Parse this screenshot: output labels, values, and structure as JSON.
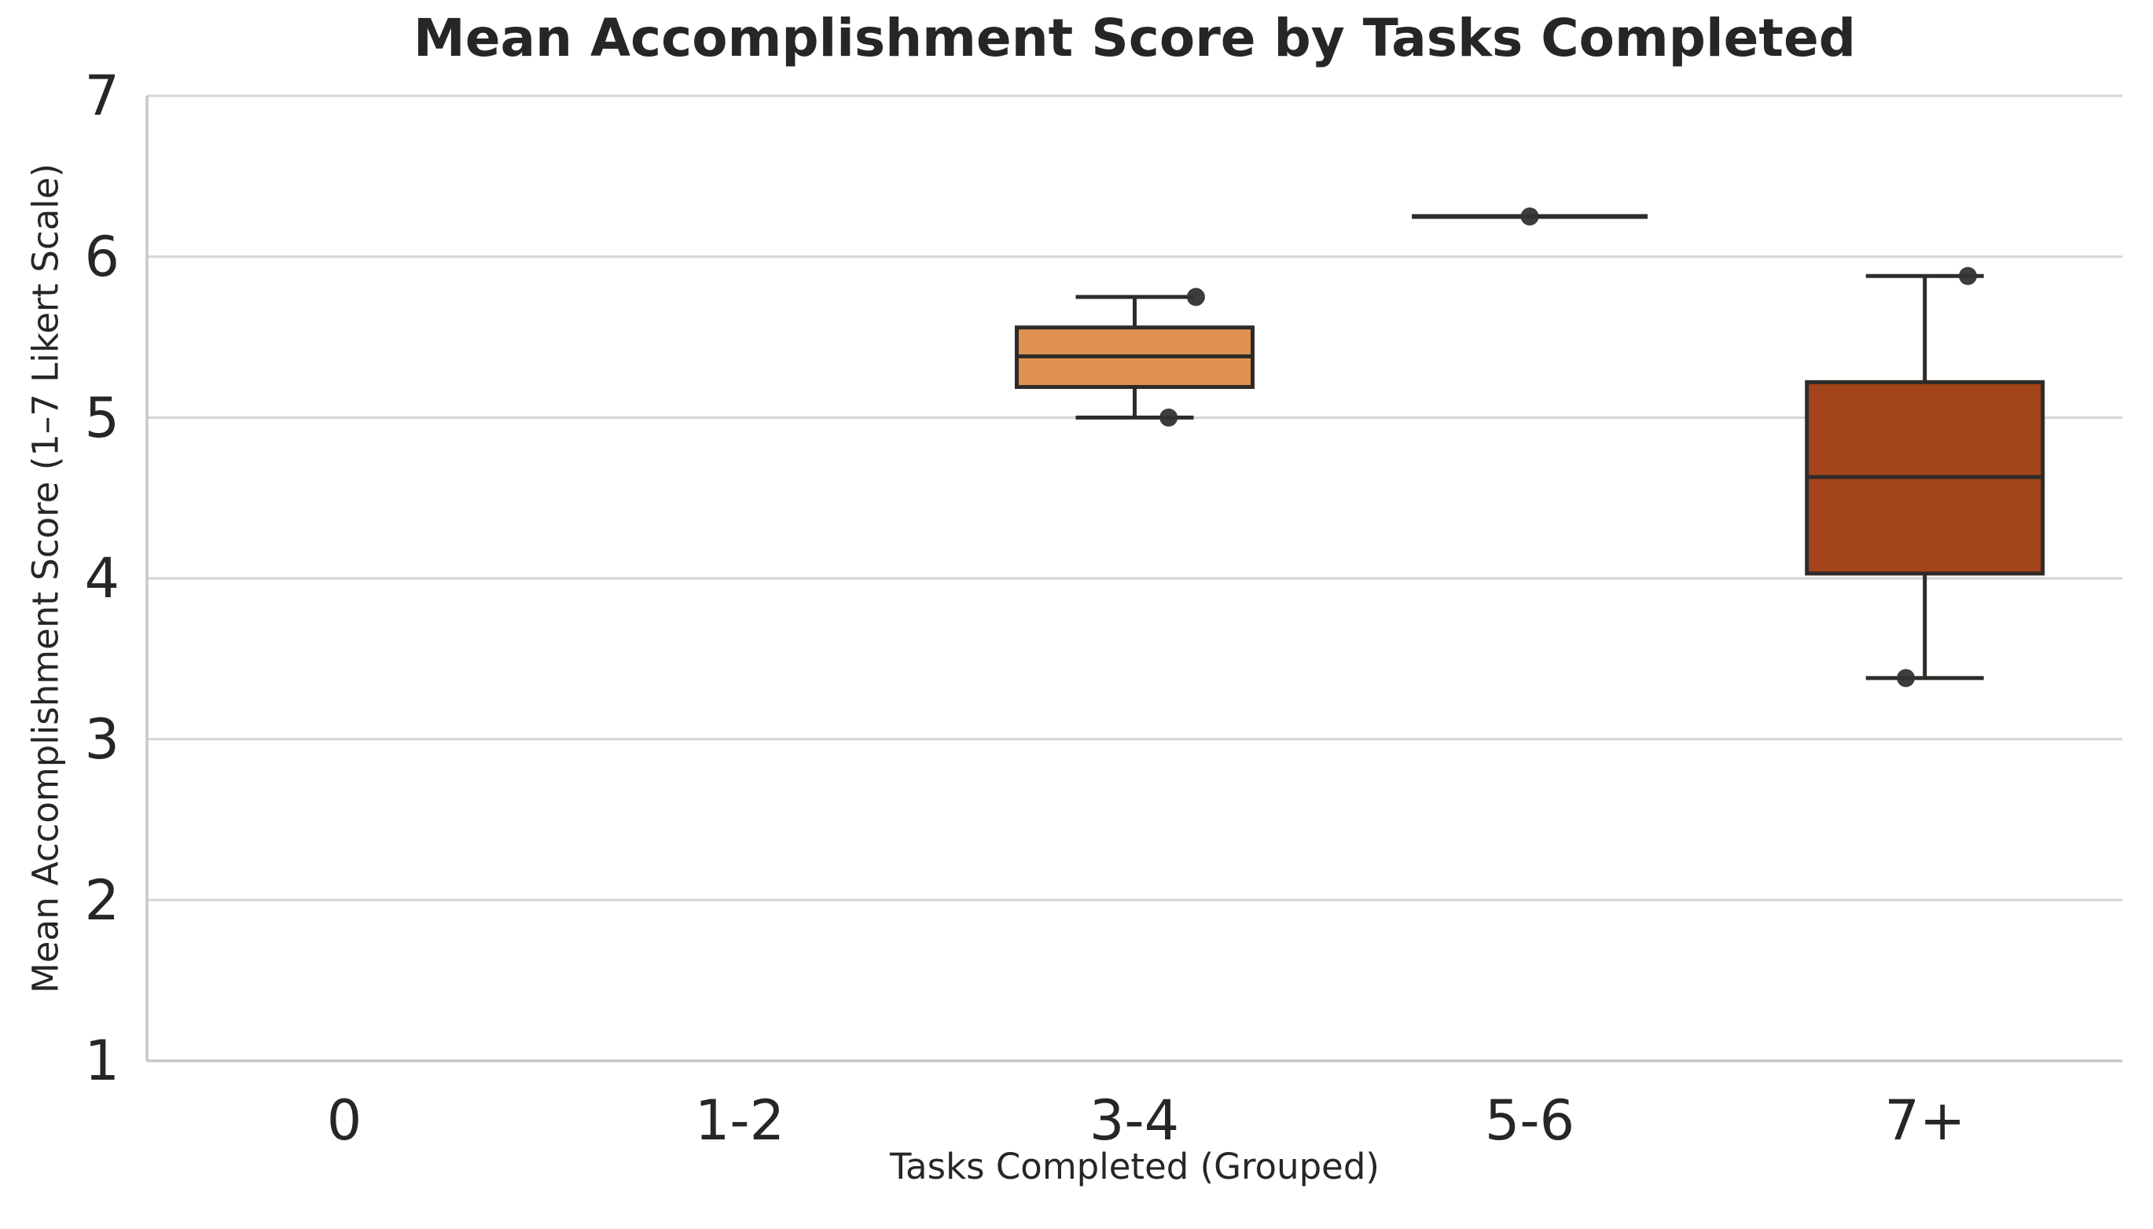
{
  "chart_data": {
    "type": "boxplot",
    "title": "Mean Accomplishment Score by Tasks Completed",
    "xlabel": "Tasks Completed (Grouped)",
    "ylabel": "Mean Accomplishment Score (1–7 Likert Scale)",
    "categories": [
      "0",
      "1-2",
      "3-4",
      "5-6",
      "7+"
    ],
    "ylim": [
      1,
      7
    ],
    "yticks": [
      1,
      2,
      3,
      4,
      5,
      6,
      7
    ],
    "grid": true,
    "legend": "none",
    "boxes": [
      {
        "category": "0",
        "stats": null,
        "fill": null,
        "points": []
      },
      {
        "category": "1-2",
        "stats": null,
        "fill": null,
        "points": []
      },
      {
        "category": "3-4",
        "stats": {
          "whislo": 5.0,
          "q1": 5.19,
          "med": 5.38,
          "q3": 5.56,
          "whishi": 5.75
        },
        "fill": "#E09250",
        "points": [
          {
            "value": 5.75,
            "jitter": 0.155
          },
          {
            "value": 5.0,
            "jitter": 0.086
          }
        ]
      },
      {
        "category": "5-6",
        "stats": {
          "whislo": 6.25,
          "q1": 6.25,
          "med": 6.25,
          "q3": 6.25,
          "whishi": 6.25
        },
        "fill": "#E09250",
        "points": [
          {
            "value": 6.25,
            "jitter": 0.0
          }
        ]
      },
      {
        "category": "7+",
        "stats": {
          "whislo": 3.38,
          "q1": 4.03,
          "med": 4.63,
          "q3": 5.22,
          "whishi": 5.88
        },
        "fill": "#A4441A",
        "points": [
          {
            "value": 5.88,
            "jitter": 0.109
          },
          {
            "value": 3.38,
            "jitter": -0.048
          }
        ]
      }
    ],
    "colors": {
      "box_edge": "#2E2B28",
      "median_line": "#2E2B28",
      "point": "#333333",
      "grid": "#D5D5D5",
      "spine": "#C8C8C8",
      "text": "#262626",
      "background": "#FFFFFF"
    }
  }
}
